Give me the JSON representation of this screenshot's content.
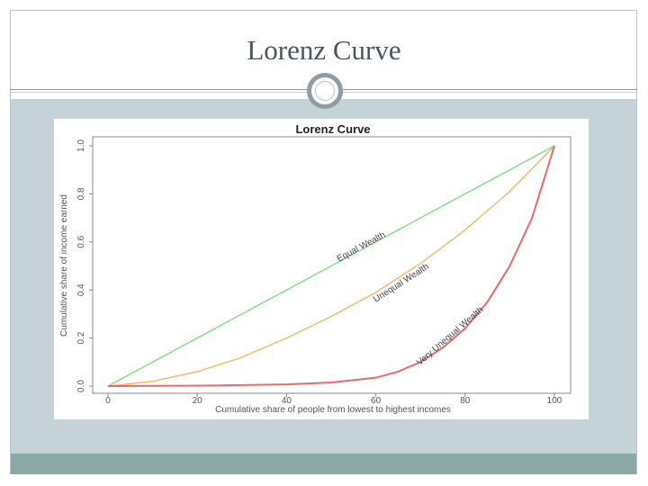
{
  "slide": {
    "title": "Lorenz Curve"
  },
  "colors": {
    "equal": "#7ee07e",
    "unequal": "#f4b860",
    "very_unequal": "#e86a6a",
    "band": "#c5d2d8",
    "footer": "#8ba8a6"
  },
  "chart_data": {
    "type": "line",
    "title": "Lorenz Curve",
    "xlabel": "Cumulative share of people from lowest to highest incomes",
    "ylabel": "Cumulative share of income earned",
    "xlim": [
      0,
      100
    ],
    "ylim": [
      0,
      1
    ],
    "x_ticks": [
      "0",
      "20",
      "40",
      "60",
      "80",
      "100"
    ],
    "y_ticks": [
      "0.0",
      "0.2",
      "0.4",
      "0.6",
      "0.8",
      "1.0"
    ],
    "grid": false,
    "series": [
      {
        "name": "Equal Wealth",
        "color": "#7ee07e",
        "x": [
          0,
          10,
          20,
          30,
          40,
          50,
          60,
          70,
          80,
          90,
          100
        ],
        "y": [
          0,
          0.1,
          0.2,
          0.3,
          0.4,
          0.5,
          0.6,
          0.7,
          0.8,
          0.9,
          1.0
        ],
        "label_at": {
          "x": 57,
          "y": 0.57
        }
      },
      {
        "name": "Unequal Wealth",
        "color": "#f4b860",
        "x": [
          0,
          10,
          20,
          30,
          40,
          50,
          60,
          70,
          80,
          90,
          100
        ],
        "y": [
          0,
          0.02,
          0.06,
          0.12,
          0.2,
          0.29,
          0.39,
          0.51,
          0.65,
          0.81,
          1.0
        ],
        "label_at": {
          "x": 66,
          "y": 0.42
        }
      },
      {
        "name": "Very Unequal Wealth",
        "color": "#e86a6a",
        "x": [
          0,
          10,
          20,
          30,
          40,
          50,
          60,
          65,
          70,
          75,
          80,
          85,
          90,
          95,
          100
        ],
        "y": [
          0,
          0.001,
          0.002,
          0.004,
          0.007,
          0.015,
          0.035,
          0.06,
          0.1,
          0.16,
          0.24,
          0.35,
          0.5,
          0.7,
          1.0
        ],
        "label_at": {
          "x": 77,
          "y": 0.2
        }
      }
    ]
  }
}
